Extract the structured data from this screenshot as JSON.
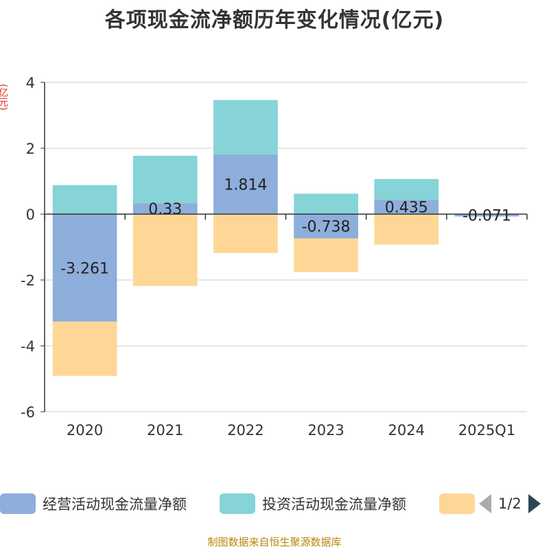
{
  "title": "各项现金流净额历年变化情况(亿元)",
  "unit_label": "(亿元)",
  "source": "制图数据来自恒生聚源数据库",
  "legend_page": "1/2",
  "colors": {
    "operating": "#8eaedb",
    "investing": "#86d4d8",
    "financing": "#fed796",
    "grid": "#cccccc",
    "axis": "#333333",
    "unit": "#e0301e"
  },
  "chart_data": {
    "type": "bar",
    "stacked": true,
    "title": "各项现金流净额历年变化情况(亿元)",
    "ylabel": "(亿元)",
    "ylim": [
      -6,
      4
    ],
    "yticks": [
      4,
      2,
      0,
      -2,
      -4,
      -6
    ],
    "grid": true,
    "legend_position": "bottom",
    "categories": [
      "2020",
      "2021",
      "2022",
      "2023",
      "2024",
      "2025Q1"
    ],
    "series": [
      {
        "name": "经营活动现金流量净额",
        "color": "#8eaedb",
        "values": [
          -3.261,
          0.33,
          1.814,
          -0.738,
          0.435,
          -0.071
        ],
        "labels": [
          "-3.261",
          "0.33",
          "1.814",
          "-0.738",
          "0.435",
          "-0.071"
        ]
      },
      {
        "name": "投资活动现金流量净额",
        "color": "#86d4d8",
        "values": [
          0.88,
          1.44,
          1.65,
          0.62,
          0.63,
          0.0
        ]
      },
      {
        "name": "",
        "color": "#fed796",
        "values": [
          -1.65,
          -2.18,
          -1.18,
          -1.02,
          -0.93,
          0.0
        ]
      }
    ]
  }
}
